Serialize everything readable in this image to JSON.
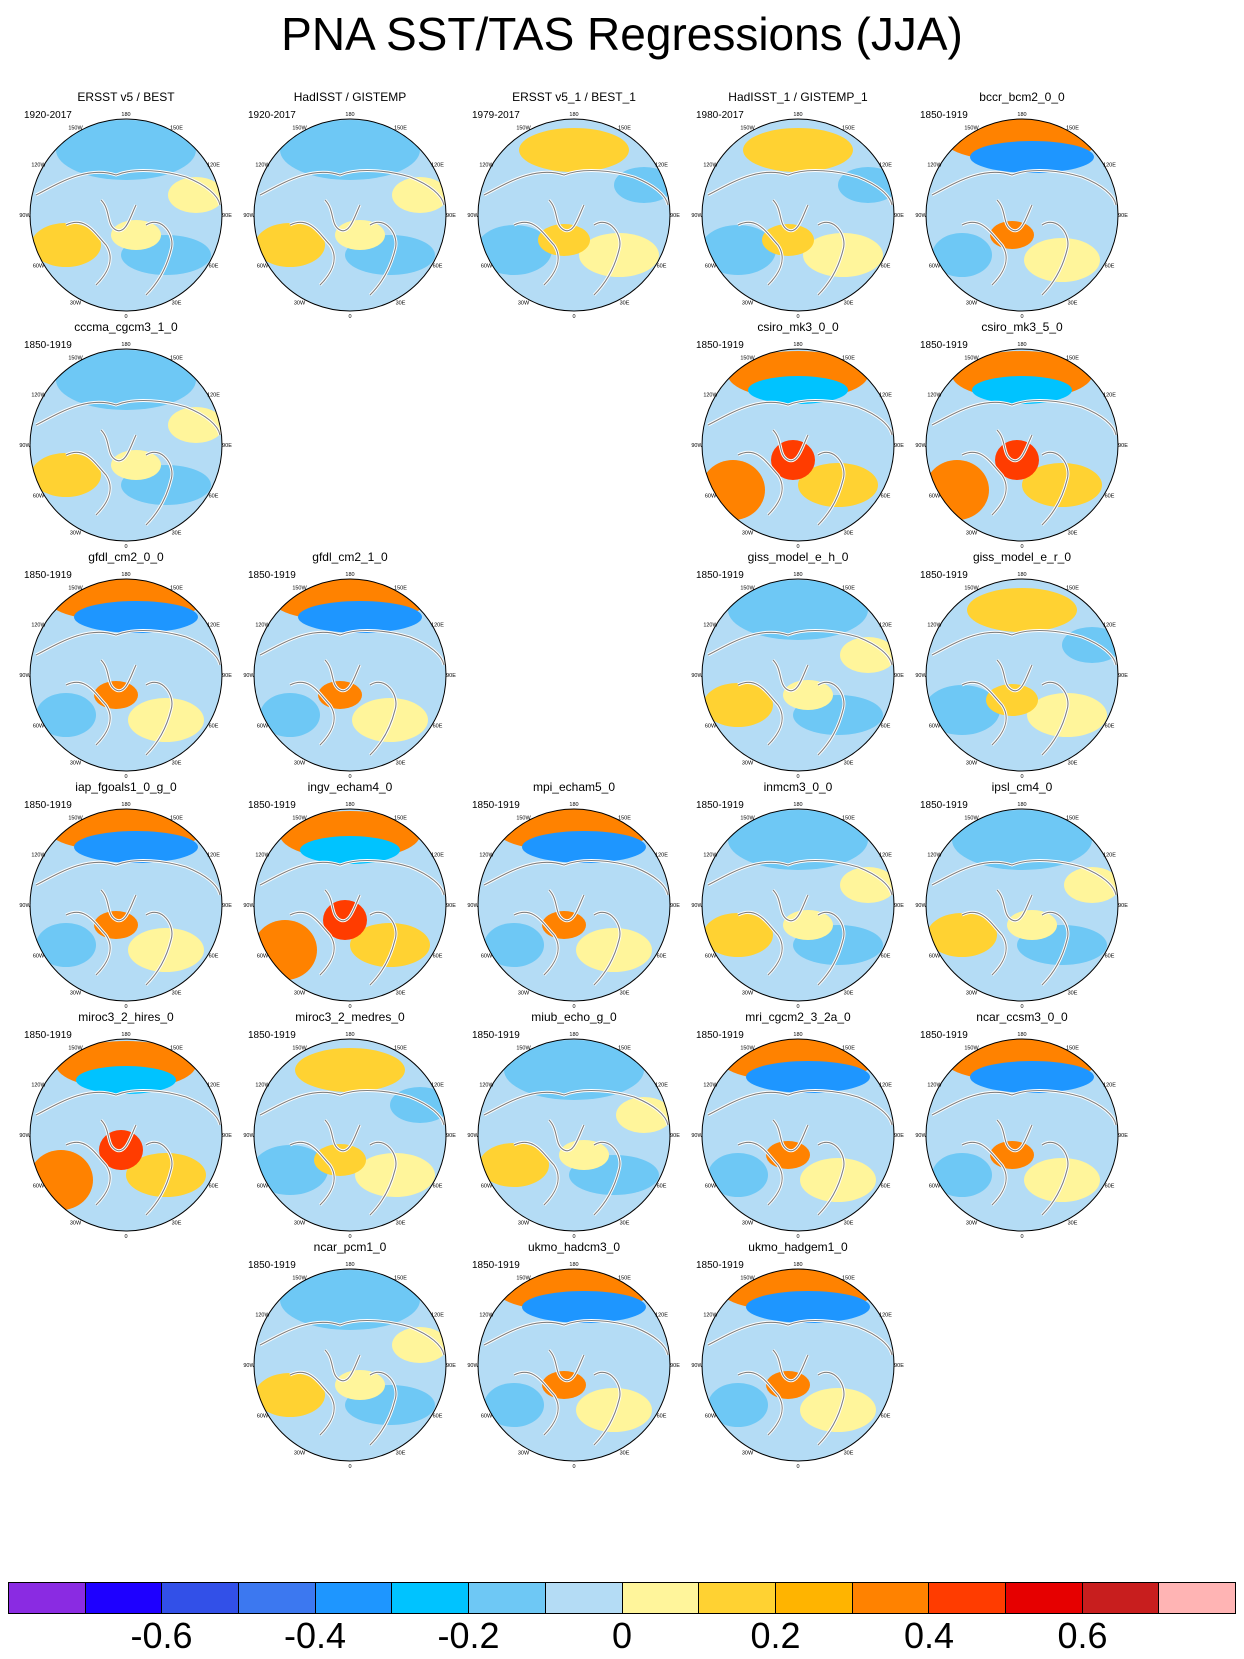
{
  "title": "PNA SST/TAS Regressions (JJA)",
  "lon_labels": [
    "180",
    "150E",
    "120E",
    "90E",
    "60E",
    "30E",
    "0",
    "30W",
    "60W",
    "90W",
    "120W",
    "150W"
  ],
  "panels": [
    {
      "title": "ERSST v5 / BEST",
      "period": "1920-2017",
      "style": "weak-blue"
    },
    {
      "title": "HadISST / GISTEMP",
      "period": "1920-2017",
      "style": "weak-blue"
    },
    {
      "title": "ERSST v5_1 / BEST_1",
      "period": "1979-2017",
      "style": "weak-warm"
    },
    {
      "title": "HadISST_1 / GISTEMP_1",
      "period": "1980-2017",
      "style": "weak-warm"
    },
    {
      "title": "bccr_bcm2_0_0",
      "period": "1850-1919",
      "style": "dipole"
    },
    {
      "title": "cccma_cgcm3_1_0",
      "period": "1850-1919",
      "style": "weak-blue"
    },
    {
      "title": "csiro_mk3_0_0",
      "period": "1850-1919",
      "style": "warm"
    },
    {
      "title": "csiro_mk3_5_0",
      "period": "1850-1919",
      "style": "warm"
    },
    {
      "title": "gfdl_cm2_0_0",
      "period": "1850-1919",
      "style": "dipole"
    },
    {
      "title": "gfdl_cm2_1_0",
      "period": "1850-1919",
      "style": "dipole"
    },
    {
      "title": "giss_model_e_h_0",
      "period": "1850-1919",
      "style": "weak-blue"
    },
    {
      "title": "giss_model_e_r_0",
      "period": "1850-1919",
      "style": "weak-warm"
    },
    {
      "title": "iap_fgoals1_0_g_0",
      "period": "1850-1919",
      "style": "dipole"
    },
    {
      "title": "ingv_echam4_0",
      "period": "1850-1919",
      "style": "warm"
    },
    {
      "title": "mpi_echam5_0",
      "period": "1850-1919",
      "style": "dipole"
    },
    {
      "title": "inmcm3_0_0",
      "period": "1850-1919",
      "style": "weak-blue"
    },
    {
      "title": "ipsl_cm4_0",
      "period": "1850-1919",
      "style": "weak-blue"
    },
    {
      "title": "miroc3_2_hires_0",
      "period": "1850-1919",
      "style": "warm"
    },
    {
      "title": "miroc3_2_medres_0",
      "period": "1850-1919",
      "style": "weak-warm"
    },
    {
      "title": "miub_echo_g_0",
      "period": "1850-1919",
      "style": "weak-blue"
    },
    {
      "title": "mri_cgcm2_3_2a_0",
      "period": "1850-1919",
      "style": "dipole"
    },
    {
      "title": "ncar_ccsm3_0_0",
      "period": "1850-1919",
      "style": "dipole"
    },
    {
      "title": "ncar_pcm1_0",
      "period": "1850-1919",
      "style": "weak-blue"
    },
    {
      "title": "ukmo_hadcm3_0",
      "period": "1850-1919",
      "style": "dipole"
    },
    {
      "title": "ukmo_hadgem1_0",
      "period": "1850-1919",
      "style": "dipole"
    }
  ],
  "colorbar": {
    "colors": [
      "#8a2be2",
      "#1e00ff",
      "#3250e8",
      "#3c78f0",
      "#1e96ff",
      "#00c3ff",
      "#6ec8f5",
      "#b4dcf5",
      "#fff59b",
      "#ffd232",
      "#ffb400",
      "#ff8200",
      "#ff3c00",
      "#e60000",
      "#c81e1e",
      "#ffb4b4"
    ],
    "labels": [
      "-0.6",
      "-0.4",
      "-0.2",
      "0",
      "0.2",
      "0.4",
      "0.6"
    ]
  }
}
